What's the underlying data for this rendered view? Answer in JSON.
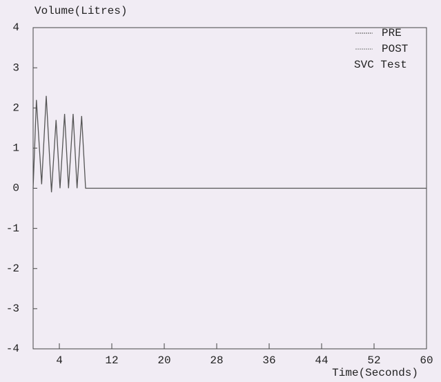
{
  "chart_data": {
    "type": "line",
    "title": "SVC Test",
    "y_label": "Volume(Litres)",
    "x_label": "Time(Seconds)",
    "x": [
      0,
      0.5,
      1.3,
      2.0,
      2.8,
      3.5,
      4.1,
      4.8,
      5.4,
      6.1,
      6.7,
      7.4,
      8.0,
      60
    ],
    "series": [
      {
        "name": "PRE",
        "color": "#555555",
        "values": [
          0,
          2.2,
          0.1,
          2.3,
          -0.1,
          1.7,
          0,
          1.85,
          0,
          1.85,
          0,
          1.8,
          0,
          0
        ]
      },
      {
        "name": "POST",
        "color": "#777777",
        "values": [
          null,
          null,
          null,
          null,
          null,
          null,
          null,
          null,
          null,
          null,
          null,
          null,
          null,
          null
        ]
      }
    ],
    "xlim": [
      0,
      60
    ],
    "xticks": [
      4,
      12,
      20,
      28,
      36,
      44,
      52,
      60
    ],
    "ylim": [
      -4,
      4
    ],
    "yticks": [
      -4,
      -3,
      -2,
      -1,
      0,
      1,
      2,
      3,
      4
    ],
    "legend": "upper right"
  }
}
